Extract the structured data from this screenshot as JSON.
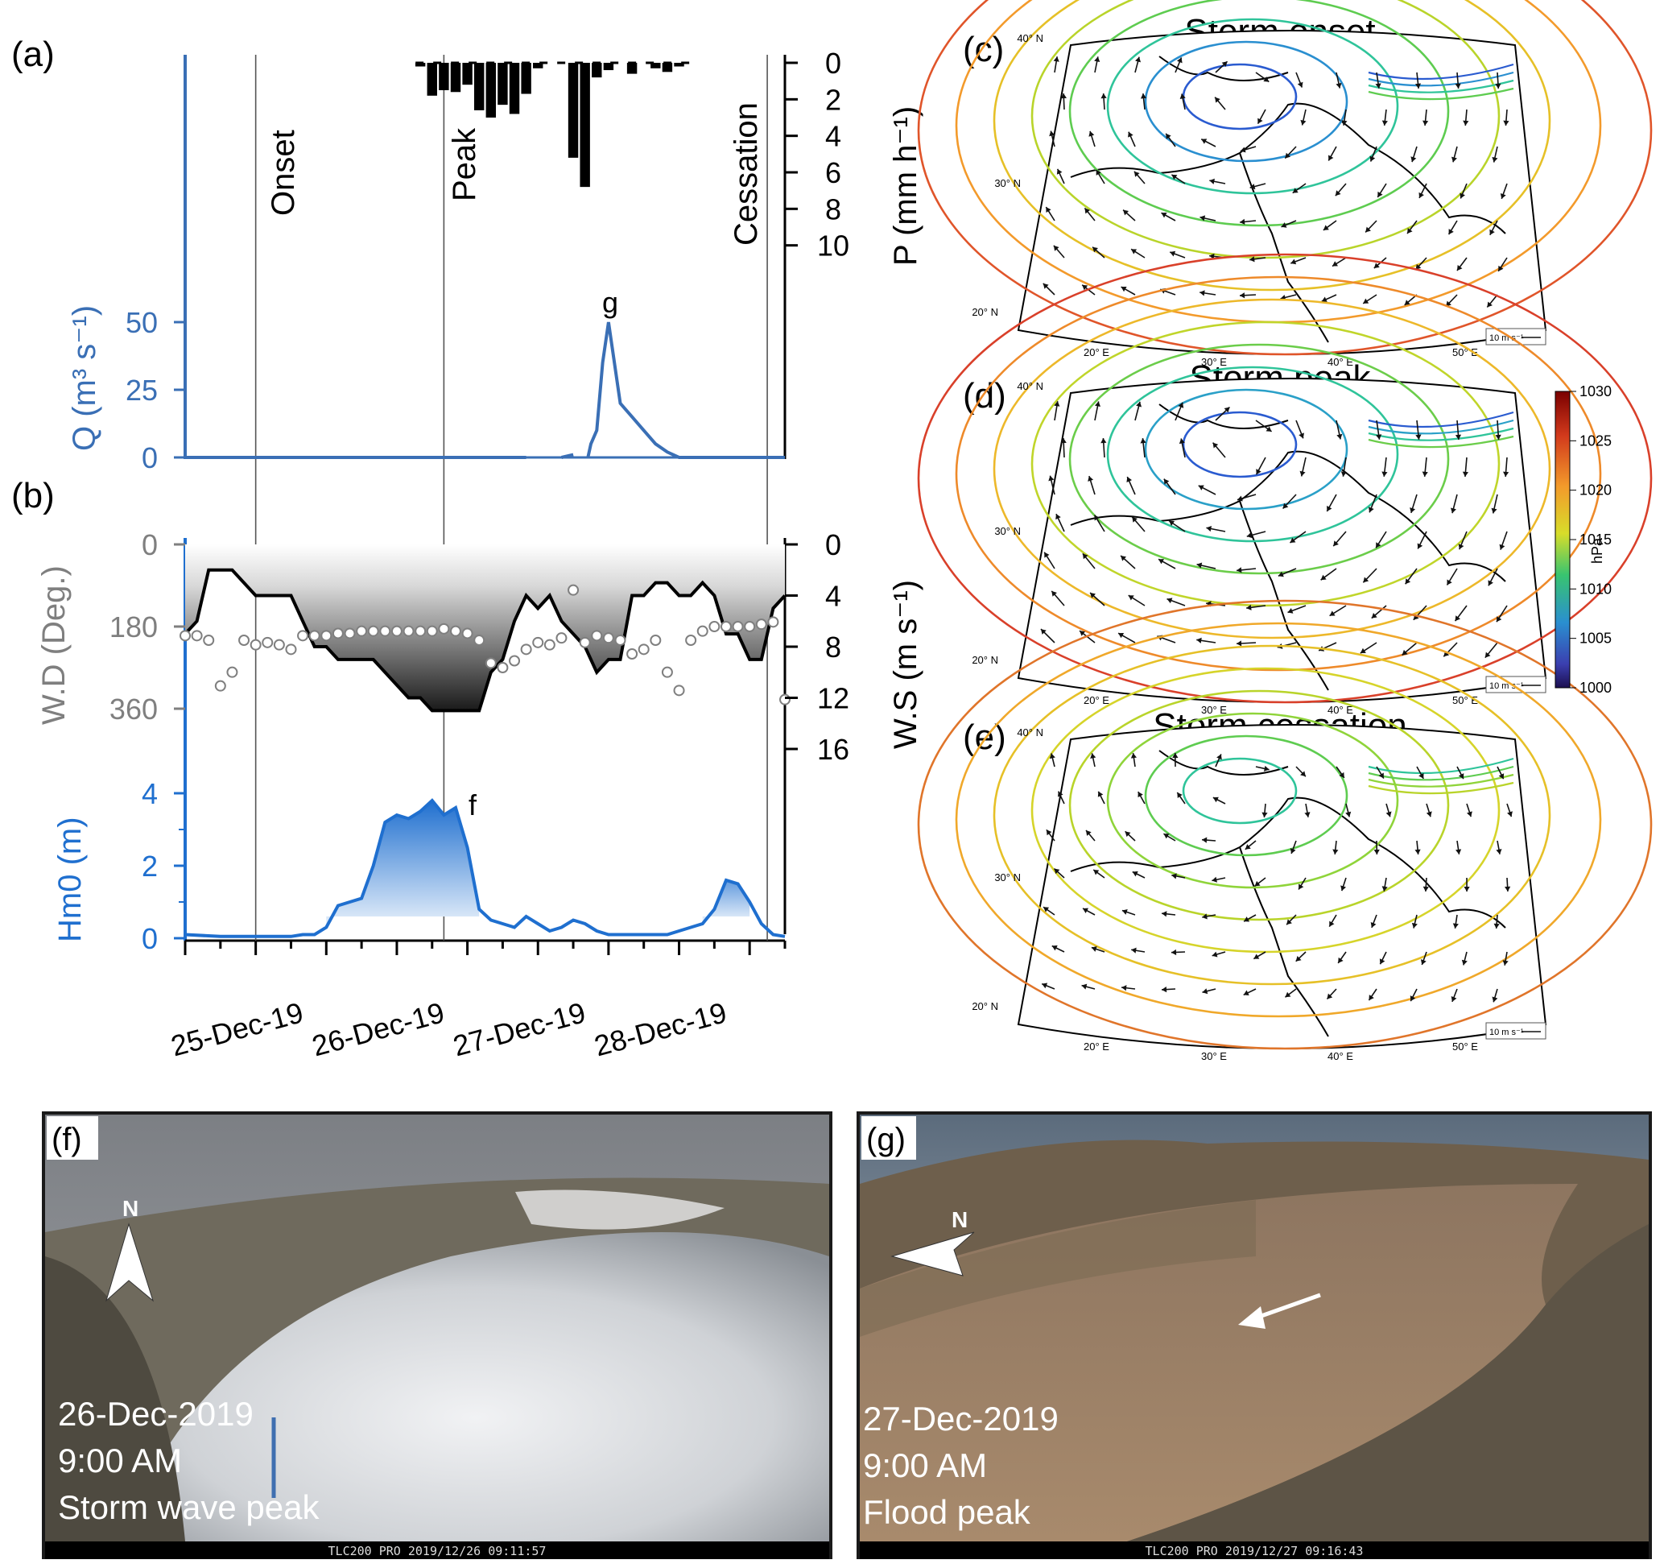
{
  "panels": {
    "a_label": "(a)",
    "b_label": "(b)",
    "c_label": "(c)",
    "d_label": "(d)",
    "e_label": "(e)",
    "f_label": "(f)",
    "g_label": "(g)"
  },
  "events": {
    "onset": "Onset",
    "peak": "Peak",
    "cessation": "Cessation",
    "marker_f": "f",
    "marker_g": "g"
  },
  "chart_data": [
    {
      "type": "bar",
      "panel": "a-top",
      "ylabel": "P (mm h⁻¹)",
      "y_ticks": [
        "0",
        "2",
        "4",
        "6",
        "8",
        "10"
      ],
      "ylim": [
        0,
        12
      ],
      "inverted_axis": true,
      "x_range_hours": [
        0,
        102
      ],
      "x_hours": [
        40,
        42,
        44,
        46,
        48,
        50,
        52,
        54,
        56,
        58,
        60,
        62,
        64,
        66,
        68,
        70,
        72,
        74,
        76,
        78,
        80,
        82,
        84
      ],
      "values": [
        0.2,
        1.8,
        1.5,
        1.6,
        1.2,
        2.6,
        3.0,
        2.3,
        2.8,
        1.7,
        0.3,
        0,
        0,
        5.2,
        6.8,
        0.8,
        0.4,
        0,
        0.6,
        0,
        0.3,
        0.5,
        0.2
      ],
      "color": "#000000"
    },
    {
      "type": "line",
      "panel": "a-bottom",
      "ylabel": "Q (m³ s⁻¹)",
      "y_ticks": [
        "0",
        "25",
        "50"
      ],
      "ylim": [
        0,
        50
      ],
      "x_hours": [
        0,
        20,
        40,
        58,
        63,
        64,
        66,
        68,
        68.5,
        69,
        70,
        71,
        72,
        74,
        76,
        78,
        80,
        82,
        84,
        86,
        102
      ],
      "values": [
        0,
        0,
        0,
        0,
        null,
        0,
        1,
        null,
        0,
        5,
        10,
        35,
        50,
        20,
        15,
        10,
        5,
        2,
        0,
        0,
        0
      ],
      "color": "#3a6fb5"
    },
    {
      "type": "line",
      "panel": "b-top",
      "ylabel_left": "W.D (Deg.)",
      "ylabel_right": "W.S (m s⁻¹)",
      "wd_ticks": [
        "0",
        "180",
        "360"
      ],
      "ws_ticks": [
        "0",
        "4",
        "8",
        "12",
        "16"
      ],
      "wd_lim": [
        0,
        360
      ],
      "ws_lim": [
        0,
        16
      ],
      "ws_x_hours": [
        0,
        2,
        4,
        6,
        8,
        10,
        12,
        14,
        16,
        18,
        20,
        22,
        24,
        26,
        28,
        30,
        32,
        34,
        36,
        38,
        40,
        42,
        44,
        46,
        48,
        50,
        52,
        54,
        56,
        58,
        60,
        62,
        64,
        66,
        68,
        70,
        72,
        74,
        76,
        78,
        80,
        82,
        84,
        86,
        88,
        90,
        92,
        94,
        96,
        98,
        100,
        102
      ],
      "ws_values": [
        7,
        6,
        2,
        2,
        2,
        3,
        4,
        4,
        4,
        4,
        6,
        8,
        8,
        9,
        9,
        9,
        9,
        10,
        11,
        12,
        12,
        13,
        13,
        13,
        13,
        13,
        10,
        9,
        6,
        4,
        5,
        4,
        6,
        7,
        8,
        10,
        9,
        9,
        4,
        4,
        3,
        3,
        4,
        4,
        3,
        4,
        7,
        7,
        9,
        9,
        5,
        4
      ],
      "wd_x_hours": [
        0,
        2,
        4,
        6,
        8,
        10,
        12,
        14,
        16,
        18,
        20,
        22,
        24,
        26,
        28,
        30,
        32,
        34,
        36,
        38,
        40,
        42,
        44,
        46,
        48,
        50,
        52,
        54,
        56,
        58,
        60,
        62,
        64,
        66,
        68,
        70,
        72,
        74,
        76,
        78,
        80,
        82,
        84,
        86,
        88,
        90,
        92,
        94,
        96,
        98,
        100,
        102
      ],
      "wd_values": [
        200,
        200,
        210,
        310,
        280,
        210,
        220,
        215,
        220,
        230,
        200,
        200,
        200,
        195,
        195,
        190,
        190,
        190,
        190,
        190,
        190,
        190,
        185,
        190,
        195,
        210,
        260,
        270,
        255,
        230,
        215,
        220,
        205,
        100,
        215,
        200,
        205,
        210,
        240,
        230,
        210,
        280,
        320,
        210,
        190,
        180,
        180,
        180,
        180,
        175,
        170,
        340
      ],
      "ws_color": "#000000",
      "wd_color": "#7f7f7f"
    },
    {
      "type": "area",
      "panel": "b-bottom",
      "ylabel": "Hm0 (m)",
      "y_ticks": [
        "0",
        "2",
        "4"
      ],
      "ylim": [
        0,
        4
      ],
      "x_hours": [
        0,
        6,
        12,
        18,
        20,
        22,
        24,
        26,
        28,
        30,
        32,
        34,
        36,
        38,
        40,
        42,
        44,
        46,
        48,
        50,
        52,
        54,
        56,
        58,
        60,
        62,
        64,
        66,
        68,
        70,
        72,
        74,
        76,
        78,
        80,
        82,
        84,
        86,
        88,
        90,
        92,
        94,
        96,
        98,
        100,
        102
      ],
      "values": [
        0.1,
        0.05,
        0.05,
        0.05,
        0.1,
        0.1,
        0.3,
        0.9,
        1.0,
        1.1,
        2.0,
        3.2,
        3.4,
        3.3,
        3.5,
        3.8,
        3.4,
        3.6,
        2.5,
        0.8,
        0.5,
        0.4,
        0.3,
        0.6,
        0.4,
        0.2,
        0.3,
        0.5,
        0.4,
        0.2,
        0.1,
        0.1,
        0.1,
        0.1,
        0.1,
        0.1,
        0.2,
        0.3,
        0.4,
        0.8,
        1.6,
        1.5,
        1.0,
        0.4,
        0.1,
        0.05
      ],
      "color": "#1f6fcf"
    }
  ],
  "x_axis": {
    "tick_labels": [
      "25-Dec-19",
      "26-Dec-19",
      "27-Dec-19",
      "28-Dec-19"
    ],
    "tick_hours": [
      12,
      36,
      60,
      84
    ],
    "event_hours": [
      12,
      44,
      99
    ]
  },
  "maps": {
    "c_title": "Storm onset",
    "d_title": "Storm peak",
    "e_title": "Storm cessation",
    "lat_labels": [
      "40° N",
      "30° N",
      "20° N"
    ],
    "lon_labels": [
      "20° E",
      "30° E",
      "40° E",
      "50° E"
    ],
    "scale_label": "10 m s⁻¹",
    "colorbar": {
      "unit": "hPa",
      "ticks": [
        "1030",
        "1025",
        "1020",
        "1015",
        "1010",
        "1005",
        "1000"
      ]
    }
  },
  "photos": {
    "f": {
      "date": "26-Dec-2019",
      "time": "9:00 AM",
      "caption": "Storm wave peak",
      "stamp": "TLC200 PRO 2019/12/26 09:11:57",
      "north": "N"
    },
    "g": {
      "date": "27-Dec-2019",
      "time": "9:00 AM",
      "caption": "Flood peak",
      "stamp": "TLC200 PRO 2019/12/27 09:16:43",
      "north": "N"
    }
  }
}
